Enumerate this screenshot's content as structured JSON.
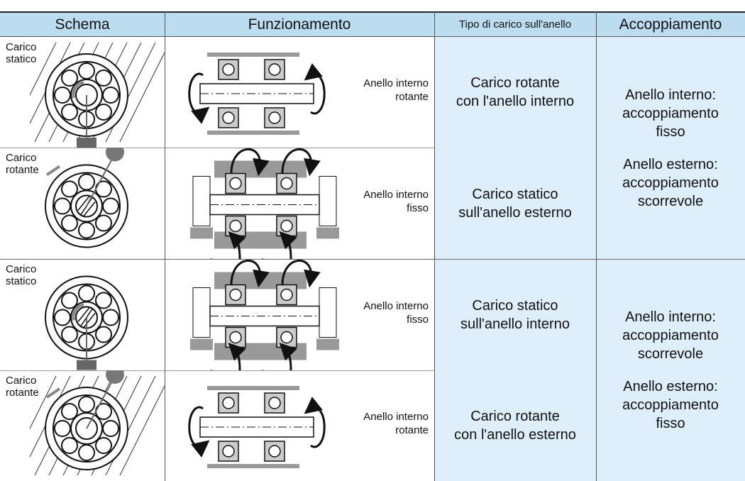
{
  "table": {
    "headers": [
      "Schema",
      "Funzionamento",
      "Tipo di carico sull'anello",
      "Accoppiamento"
    ],
    "rows": [
      {
        "schema": [
          "Carico",
          "statico"
        ],
        "function": [
          "Anello interno",
          "rotante"
        ]
      },
      {
        "schema": [
          "Carico",
          "rotante"
        ],
        "function": [
          "Anello interno",
          "fisso"
        ]
      },
      {
        "schema": [
          "Carico",
          "statico"
        ],
        "function": [
          "Anello interno",
          "fisso"
        ]
      },
      {
        "schema": [
          "Carico",
          "rotante"
        ],
        "function": [
          "Anello interno",
          "rotante"
        ]
      }
    ],
    "groups": [
      {
        "load_types": [
          [
            "Carico rotante",
            "con l'anello interno"
          ],
          [
            "Carico statico",
            "sull'anello esterno"
          ]
        ],
        "fits": [
          [
            "Anello interno:",
            "accoppiamento",
            "fisso"
          ],
          [
            "Anello esterno:",
            "accoppiamento",
            "scorrevole"
          ]
        ]
      },
      {
        "load_types": [
          [
            "Carico statico",
            "sull'anello interno"
          ],
          [
            "Carico rotante",
            "con l'anello esterno"
          ]
        ],
        "fits": [
          [
            "Anello interno:",
            "accoppiamento",
            "scorrevole"
          ],
          [
            "Anello esterno:",
            "accoppiamento",
            "fisso"
          ]
        ]
      }
    ]
  }
}
